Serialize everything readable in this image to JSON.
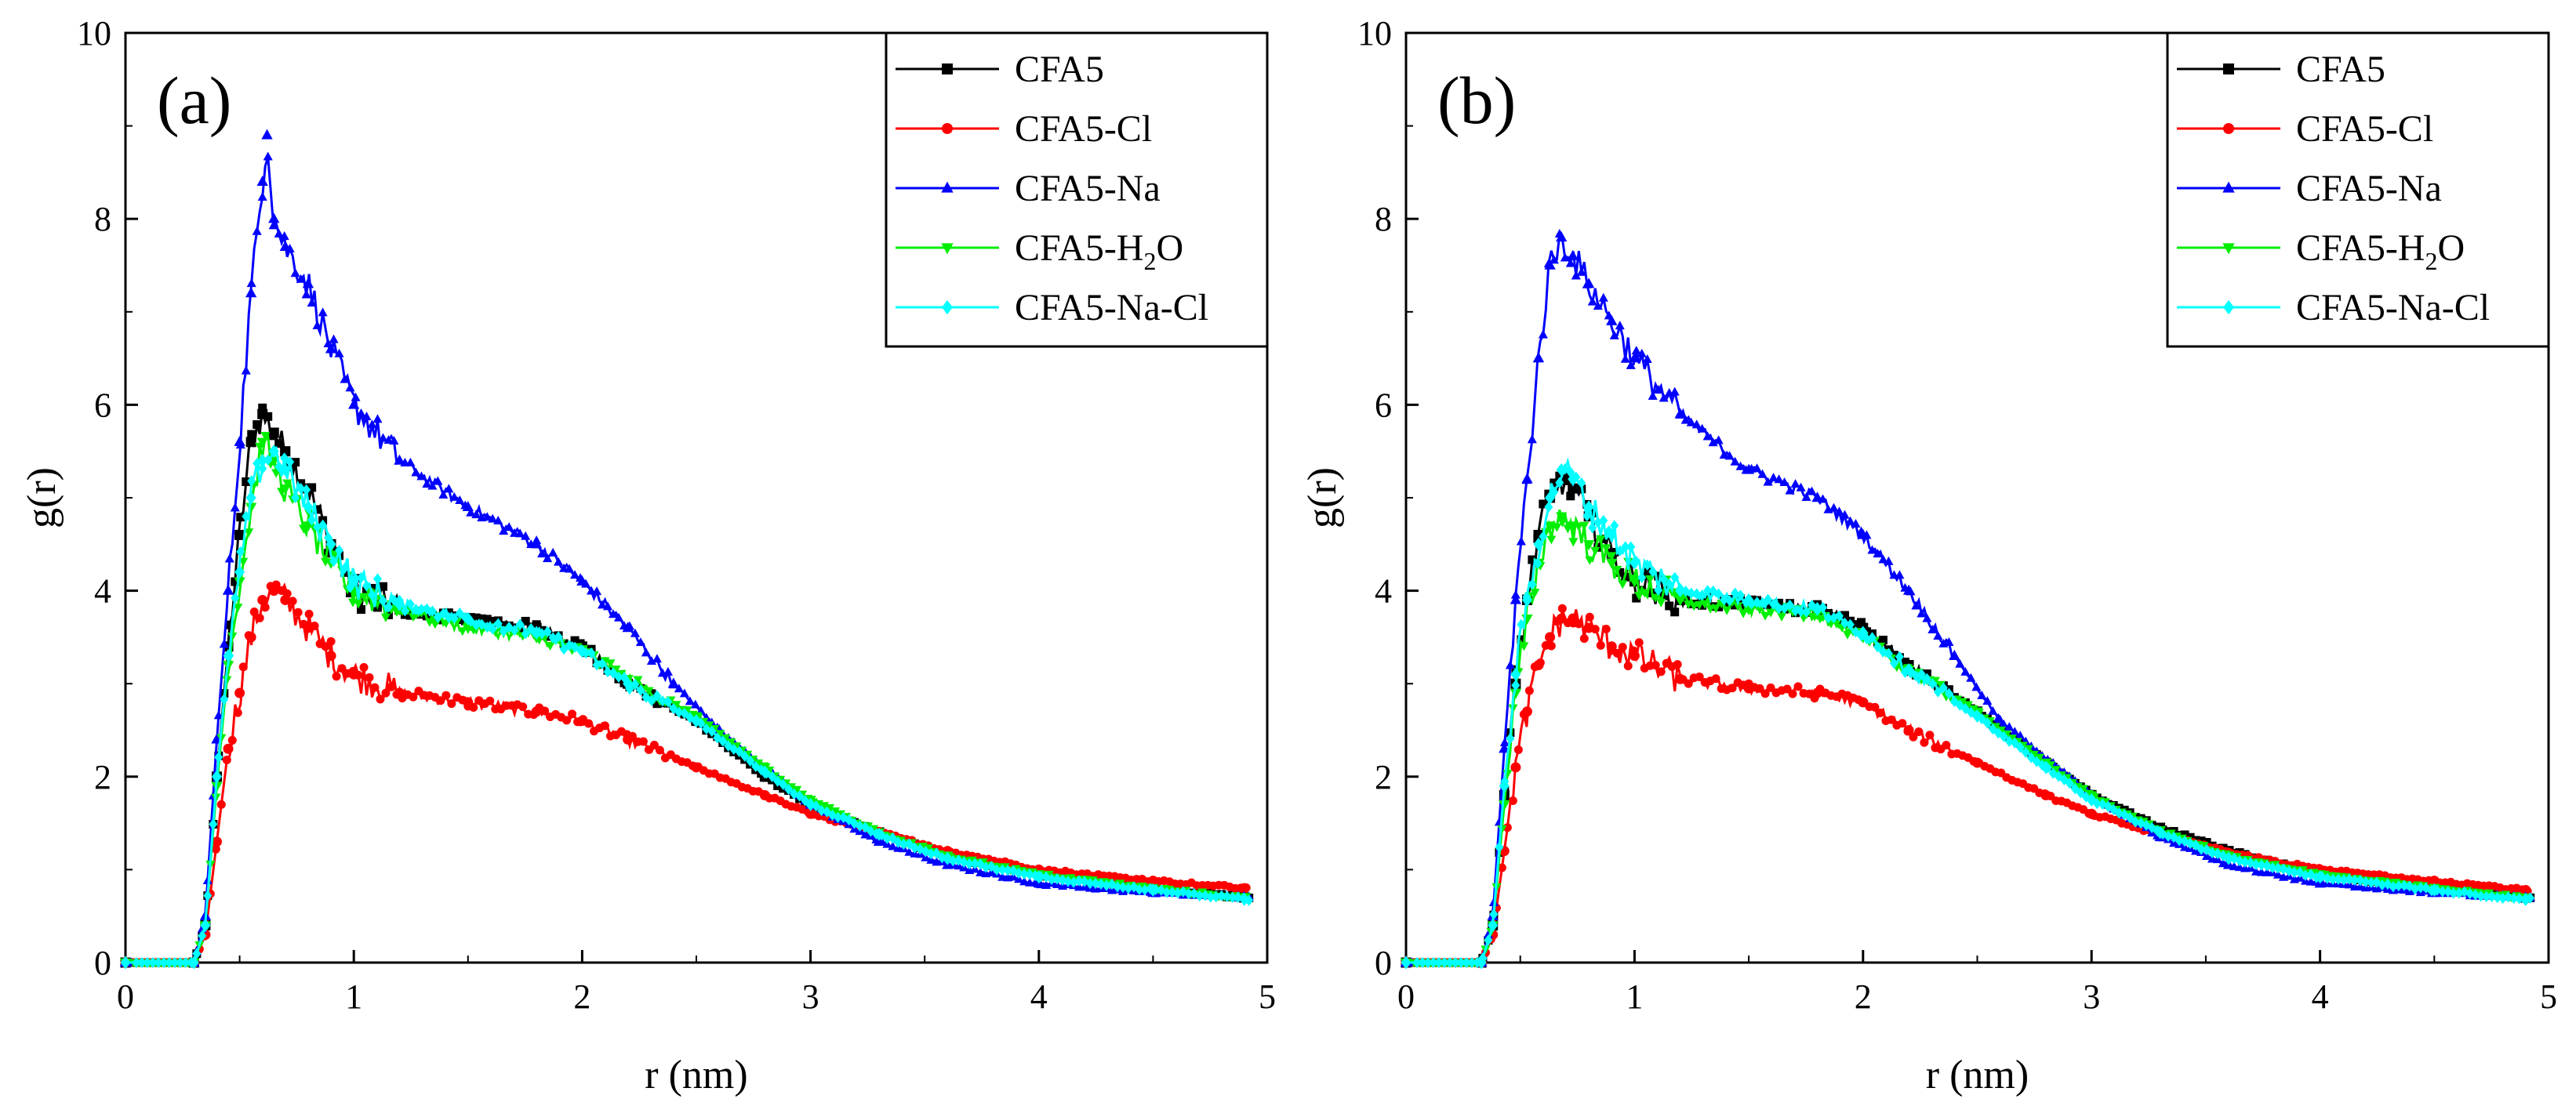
{
  "chart_data": [
    {
      "type": "line",
      "panel_label": "(a)",
      "xlabel": "r (nm)",
      "ylabel": "g(r)",
      "xlim": [
        0,
        5
      ],
      "ylim": [
        0,
        10
      ],
      "xticks": [
        0,
        1,
        2,
        3,
        4,
        5
      ],
      "yticks": [
        0,
        2,
        4,
        6,
        8,
        10
      ],
      "legend_position": "top-right",
      "series": [
        {
          "name": "CFA5",
          "color": "#000000",
          "marker": "square",
          "x": [
            0,
            0.3,
            0.35,
            0.4,
            0.45,
            0.5,
            0.55,
            0.6,
            0.65,
            0.7,
            0.8,
            0.9,
            1.0,
            1.2,
            1.5,
            1.8,
            2.0,
            2.2,
            2.5,
            2.8,
            3.0,
            3.3,
            3.6,
            4.0,
            4.5,
            4.9
          ],
          "y": [
            0,
            0,
            0.4,
            2.0,
            3.4,
            4.6,
            5.6,
            5.9,
            5.7,
            5.5,
            5.1,
            4.5,
            4.0,
            3.8,
            3.7,
            3.6,
            3.4,
            3.0,
            2.6,
            2.0,
            1.7,
            1.4,
            1.15,
            0.95,
            0.8,
            0.7
          ]
        },
        {
          "name": "CFA5-Cl",
          "color": "#ff0000",
          "marker": "circle",
          "x": [
            0,
            0.3,
            0.35,
            0.4,
            0.45,
            0.5,
            0.55,
            0.6,
            0.65,
            0.7,
            0.8,
            0.9,
            1.0,
            1.2,
            1.5,
            1.8,
            2.0,
            2.2,
            2.5,
            2.8,
            3.0,
            3.3,
            3.6,
            4.0,
            4.5,
            4.9
          ],
          "y": [
            0,
            0,
            0.3,
            1.3,
            2.3,
            2.9,
            3.5,
            3.9,
            4.0,
            3.9,
            3.6,
            3.3,
            3.1,
            2.9,
            2.8,
            2.7,
            2.6,
            2.4,
            2.1,
            1.8,
            1.6,
            1.4,
            1.2,
            1.0,
            0.88,
            0.8
          ]
        },
        {
          "name": "CFA5-Na",
          "color": "#0000ff",
          "marker": "triangle-up",
          "x": [
            0,
            0.3,
            0.35,
            0.4,
            0.45,
            0.5,
            0.55,
            0.6,
            0.62,
            0.65,
            0.7,
            0.8,
            0.9,
            1.0,
            1.2,
            1.5,
            1.8,
            2.0,
            2.2,
            2.4,
            2.6,
            3.0,
            3.3,
            3.6,
            4.0,
            4.5,
            4.9
          ],
          "y": [
            0,
            0,
            0.5,
            2.4,
            4.0,
            5.6,
            7.2,
            8.4,
            8.9,
            8.0,
            7.7,
            7.3,
            6.6,
            6.0,
            5.4,
            4.9,
            4.5,
            4.1,
            3.6,
            3.0,
            2.5,
            1.7,
            1.3,
            1.05,
            0.85,
            0.75,
            0.7
          ]
        },
        {
          "name": "CFA5-H2O",
          "color": "#00ee00",
          "marker": "triangle-down",
          "x": [
            0,
            0.3,
            0.35,
            0.4,
            0.45,
            0.5,
            0.55,
            0.6,
            0.65,
            0.7,
            0.8,
            0.9,
            1.0,
            1.2,
            1.5,
            1.8,
            2.0,
            2.2,
            2.5,
            2.8,
            3.0,
            3.3,
            3.6,
            4.0,
            4.5,
            4.9
          ],
          "y": [
            0,
            0,
            0.4,
            1.9,
            3.2,
            4.1,
            4.9,
            5.6,
            5.4,
            5.1,
            4.7,
            4.3,
            4.0,
            3.8,
            3.6,
            3.5,
            3.35,
            3.05,
            2.65,
            2.1,
            1.75,
            1.4,
            1.15,
            0.95,
            0.8,
            0.7
          ]
        },
        {
          "name": "CFA5-Na-Cl",
          "color": "#00ffff",
          "marker": "diamond",
          "x": [
            0,
            0.3,
            0.35,
            0.4,
            0.45,
            0.5,
            0.55,
            0.6,
            0.65,
            0.7,
            0.8,
            0.9,
            1.0,
            1.2,
            1.5,
            1.8,
            2.0,
            2.2,
            2.5,
            2.8,
            3.0,
            3.3,
            3.6,
            4.0,
            4.5,
            4.9
          ],
          "y": [
            0,
            0,
            0.4,
            2.0,
            3.3,
            4.2,
            5.0,
            5.4,
            5.5,
            5.3,
            4.9,
            4.5,
            4.1,
            3.85,
            3.7,
            3.55,
            3.35,
            3.0,
            2.6,
            2.05,
            1.7,
            1.38,
            1.12,
            0.92,
            0.78,
            0.68
          ]
        }
      ]
    },
    {
      "type": "line",
      "panel_label": "(b)",
      "xlabel": "r (nm)",
      "ylabel": "g(r)",
      "xlim": [
        0,
        5
      ],
      "ylim": [
        0,
        10
      ],
      "xticks": [
        0,
        1,
        2,
        3,
        4,
        5
      ],
      "yticks": [
        0,
        2,
        4,
        6,
        8,
        10
      ],
      "legend_position": "top-right",
      "series": [
        {
          "name": "CFA5",
          "color": "#000000",
          "marker": "square",
          "x": [
            0,
            0.33,
            0.38,
            0.43,
            0.48,
            0.53,
            0.58,
            0.63,
            0.68,
            0.73,
            0.8,
            0.9,
            1.0,
            1.2,
            1.5,
            1.8,
            2.0,
            2.2,
            2.5,
            2.8,
            3.0,
            3.3,
            3.6,
            4.0,
            4.5,
            4.9
          ],
          "y": [
            0,
            0,
            0.4,
            1.8,
            3.0,
            3.9,
            4.6,
            5.0,
            5.2,
            5.1,
            4.8,
            4.4,
            4.1,
            3.9,
            3.85,
            3.8,
            3.6,
            3.2,
            2.7,
            2.15,
            1.8,
            1.45,
            1.2,
            0.95,
            0.8,
            0.7
          ]
        },
        {
          "name": "CFA5-Cl",
          "color": "#ff0000",
          "marker": "circle",
          "x": [
            0,
            0.33,
            0.38,
            0.43,
            0.48,
            0.53,
            0.58,
            0.63,
            0.68,
            0.73,
            0.8,
            0.9,
            1.0,
            1.2,
            1.5,
            1.8,
            2.0,
            2.2,
            2.5,
            2.8,
            3.0,
            3.3,
            3.6,
            4.0,
            4.5,
            4.9
          ],
          "y": [
            0,
            0,
            0.3,
            1.2,
            2.1,
            2.7,
            3.2,
            3.5,
            3.7,
            3.7,
            3.6,
            3.4,
            3.3,
            3.05,
            2.95,
            2.9,
            2.8,
            2.5,
            2.15,
            1.8,
            1.6,
            1.38,
            1.18,
            1.0,
            0.88,
            0.78
          ]
        },
        {
          "name": "CFA5-Na",
          "color": "#0000ff",
          "marker": "triangle-up",
          "x": [
            0,
            0.33,
            0.38,
            0.43,
            0.48,
            0.53,
            0.58,
            0.63,
            0.68,
            0.73,
            0.8,
            0.9,
            1.0,
            1.2,
            1.5,
            1.8,
            2.0,
            2.2,
            2.4,
            2.6,
            3.0,
            3.3,
            3.6,
            4.0,
            4.5,
            4.9
          ],
          "y": [
            0,
            0,
            0.5,
            2.3,
            3.9,
            5.2,
            6.5,
            7.5,
            7.8,
            7.6,
            7.3,
            6.9,
            6.5,
            5.9,
            5.3,
            5.0,
            4.6,
            4.0,
            3.3,
            2.6,
            1.8,
            1.35,
            1.05,
            0.85,
            0.75,
            0.7
          ]
        },
        {
          "name": "CFA5-H2O",
          "color": "#00ee00",
          "marker": "triangle-down",
          "x": [
            0,
            0.33,
            0.38,
            0.43,
            0.48,
            0.53,
            0.58,
            0.63,
            0.68,
            0.73,
            0.8,
            0.9,
            1.0,
            1.2,
            1.5,
            1.8,
            2.0,
            2.2,
            2.5,
            2.8,
            3.0,
            3.3,
            3.6,
            4.0,
            4.5,
            4.9
          ],
          "y": [
            0,
            0,
            0.4,
            1.7,
            2.9,
            3.7,
            4.3,
            4.7,
            4.8,
            4.7,
            4.5,
            4.3,
            4.1,
            3.9,
            3.8,
            3.75,
            3.5,
            3.15,
            2.7,
            2.15,
            1.8,
            1.42,
            1.15,
            0.95,
            0.8,
            0.7
          ]
        },
        {
          "name": "CFA5-Na-Cl",
          "color": "#00ffff",
          "marker": "diamond",
          "x": [
            0,
            0.33,
            0.38,
            0.43,
            0.48,
            0.53,
            0.58,
            0.63,
            0.68,
            0.73,
            0.8,
            0.9,
            1.0,
            1.2,
            1.5,
            1.8,
            2.0,
            2.2,
            2.5,
            2.8,
            3.0,
            3.3,
            3.6,
            4.0,
            4.5,
            4.9
          ],
          "y": [
            0,
            0,
            0.4,
            1.9,
            3.1,
            3.9,
            4.5,
            5.0,
            5.3,
            5.2,
            4.9,
            4.6,
            4.3,
            4.0,
            3.9,
            3.8,
            3.55,
            3.15,
            2.65,
            2.1,
            1.75,
            1.4,
            1.12,
            0.92,
            0.78,
            0.68
          ]
        }
      ]
    }
  ]
}
